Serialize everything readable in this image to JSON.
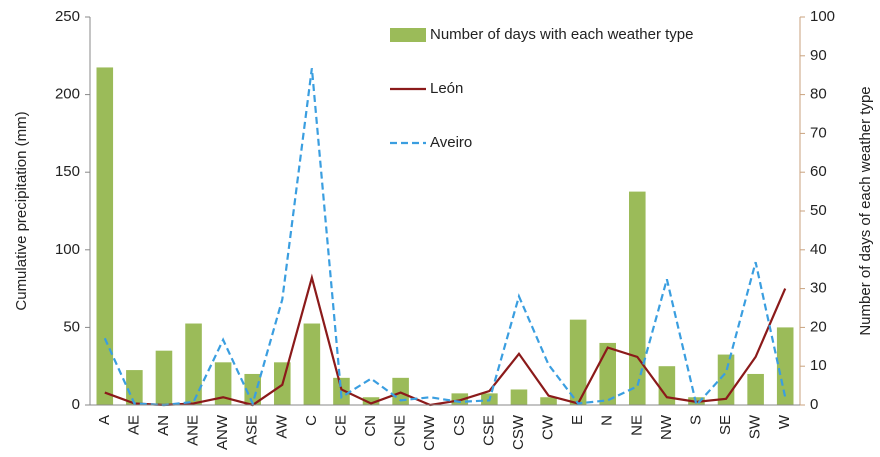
{
  "chart_data": {
    "type": "bar-line",
    "categories": [
      "A",
      "AE",
      "AN",
      "ANE",
      "ANW",
      "ASE",
      "AW",
      "C",
      "CE",
      "CN",
      "CNE",
      "CNW",
      "CS",
      "CSE",
      "CSW",
      "CW",
      "E",
      "N",
      "NE",
      "NW",
      "S",
      "SE",
      "SW",
      "W"
    ],
    "series": [
      {
        "name": "Number of days with each weather type",
        "type": "bar",
        "axis": "y2",
        "color": "#9bbb59",
        "values": [
          87,
          9,
          14,
          21,
          11,
          8,
          11,
          21,
          7,
          2,
          7,
          0,
          3,
          3,
          4,
          2,
          22,
          16,
          55,
          10,
          2,
          13,
          8,
          20
        ]
      },
      {
        "name": "León",
        "type": "line",
        "color": "#8b1a1a",
        "values": [
          8,
          1,
          0,
          1,
          5,
          0,
          13,
          82,
          10,
          1,
          8,
          0,
          3,
          9,
          33,
          6,
          1,
          37,
          31,
          5,
          2,
          4,
          31,
          75
        ]
      },
      {
        "name": "Aveiro",
        "type": "line",
        "color": "#3a9ee0",
        "dashed": true,
        "values": [
          43,
          1,
          0,
          2,
          42,
          1,
          68,
          217,
          5,
          17,
          3,
          5,
          2,
          3,
          70,
          26,
          1,
          3,
          12,
          81,
          0,
          21,
          92,
          5
        ]
      }
    ],
    "ylabel": "Cumulative precipitation  (mm)",
    "y2label": "Number of days of each weather type",
    "ylim": [
      0,
      250
    ],
    "yticks": [
      0,
      50,
      100,
      150,
      200,
      250
    ],
    "y2lim": [
      0,
      100
    ],
    "y2ticks": [
      0,
      10,
      20,
      30,
      40,
      50,
      60,
      70,
      80,
      90,
      100
    ],
    "grid": false
  }
}
